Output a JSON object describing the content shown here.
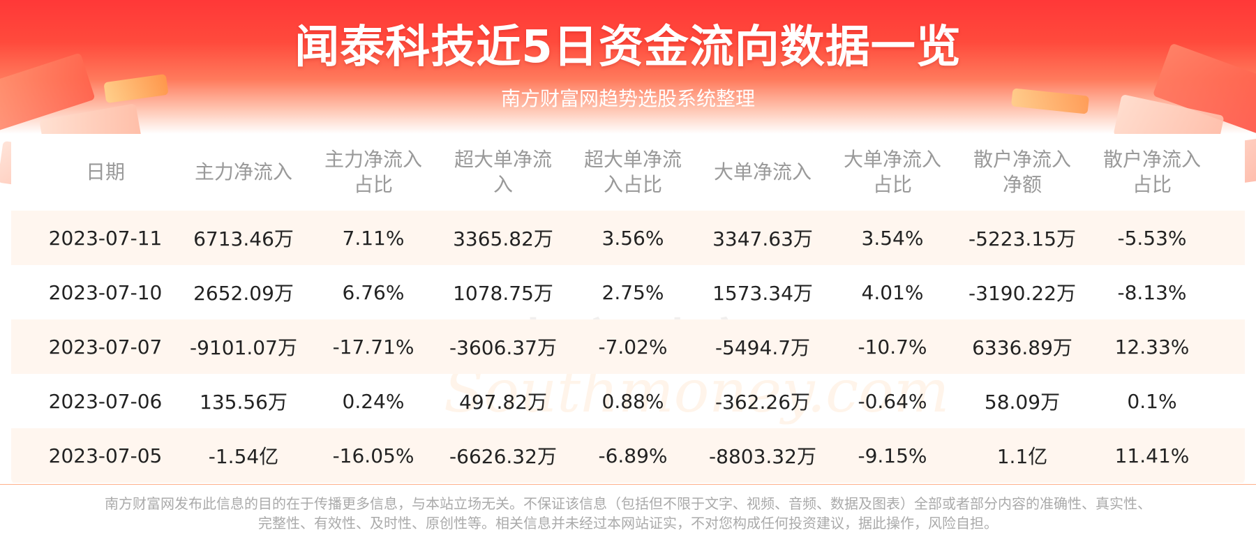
{
  "header": {
    "title": "闻泰科技近5日资金流向数据一览",
    "subtitle": "南方财富网趋势选股系统整理"
  },
  "watermark": {
    "cn": "南方财富网",
    "en": "Southmoney.com"
  },
  "table": {
    "headers": [
      [
        "日期"
      ],
      [
        "主力净流入"
      ],
      [
        "主力净流入",
        "占比"
      ],
      [
        "超大单净流",
        "入"
      ],
      [
        "超大单净流",
        "入占比"
      ],
      [
        "大单净流入"
      ],
      [
        "大单净流入",
        "占比"
      ],
      [
        "散户净流入",
        "净额"
      ],
      [
        "散户净流入",
        "占比"
      ]
    ],
    "rows": [
      [
        "2023-07-11",
        "6713.46万",
        "7.11%",
        "3365.82万",
        "3.56%",
        "3347.63万",
        "3.54%",
        "-5223.15万",
        "-5.53%"
      ],
      [
        "2023-07-10",
        "2652.09万",
        "6.76%",
        "1078.75万",
        "2.75%",
        "1573.34万",
        "4.01%",
        "-3190.22万",
        "-8.13%"
      ],
      [
        "2023-07-07",
        "-9101.07万",
        "-17.71%",
        "-3606.37万",
        "-7.02%",
        "-5494.7万",
        "-10.7%",
        "6336.89万",
        "12.33%"
      ],
      [
        "2023-07-06",
        "135.56万",
        "0.24%",
        "497.82万",
        "0.88%",
        "-362.26万",
        "-0.64%",
        "58.09万",
        "0.1%"
      ],
      [
        "2023-07-05",
        "-1.54亿",
        "-16.05%",
        "-6626.32万",
        "-6.89%",
        "-8803.32万",
        "-9.15%",
        "1.1亿",
        "11.41%"
      ]
    ]
  },
  "footer": {
    "line1": "南方财富网发布此信息的目的在于传播更多信息，与本站立场无关。不保证该信息（包括但不限于文字、视频、音频、数据及图表）全部或者部分内容的准确性、真实性、",
    "line2": "完整性、有效性、及时性、原创性等。相关信息并未经过本网站证实，不对您构成任何投资建议，据此操作，风险自担。"
  },
  "colors": {
    "banner_red": "#ff3838",
    "row_alt": "#fff6ef",
    "header_text": "#999999",
    "cell_text": "#222222"
  }
}
